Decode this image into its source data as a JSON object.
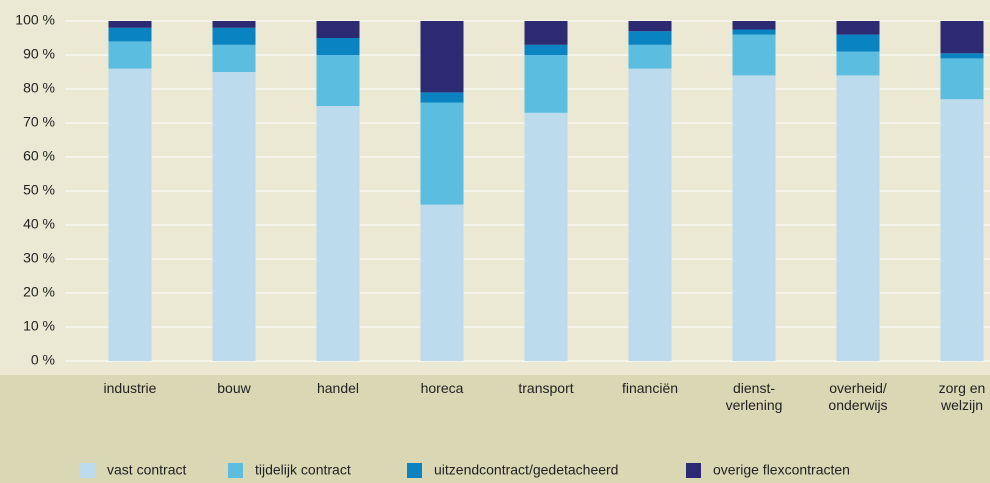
{
  "chart_data": {
    "type": "stacked_bar",
    "categories": [
      "industrie",
      "bouw",
      "handel",
      "horeca",
      "transport",
      "financiën",
      "dienst-\nverlening",
      "overheid/\nonderwijs",
      "zorg en\nwelzijn"
    ],
    "series": [
      {
        "name": "vast contract",
        "color": "#bcdcee",
        "values": [
          86,
          85,
          75,
          46,
          73,
          86,
          84,
          84,
          77
        ]
      },
      {
        "name": "tijdelijk contract",
        "color": "#5bbde0",
        "values": [
          8,
          8,
          15,
          30,
          17,
          7,
          12,
          7,
          12
        ]
      },
      {
        "name": "uitzendcontract/gedetacheerd",
        "color": "#0a83c2",
        "values": [
          4,
          5,
          5,
          3,
          3,
          4,
          1.5,
          5,
          1.5
        ]
      },
      {
        "name": "overige flexcontracten",
        "color": "#2b2a73",
        "values": [
          2,
          2,
          5,
          21,
          7,
          3,
          2.5,
          4,
          9.5
        ]
      }
    ],
    "ylim": [
      0,
      100
    ],
    "yticks": [
      {
        "value": 0,
        "label": "0 %"
      },
      {
        "value": 10,
        "label": "10 %"
      },
      {
        "value": 20,
        "label": "20 %"
      },
      {
        "value": 30,
        "label": "30 %"
      },
      {
        "value": 40,
        "label": "40 %"
      },
      {
        "value": 50,
        "label": "50 %"
      },
      {
        "value": 60,
        "label": "60 %"
      },
      {
        "value": 70,
        "label": "70 %"
      },
      {
        "value": 80,
        "label": "80 %"
      },
      {
        "value": 90,
        "label": "90 %"
      },
      {
        "value": 100,
        "label": "100 %"
      }
    ],
    "grid": true,
    "legend": "bottom"
  }
}
